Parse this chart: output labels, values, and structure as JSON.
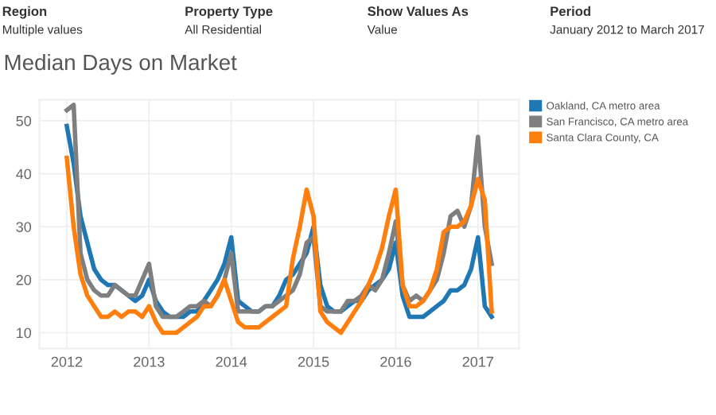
{
  "chart_data": {
    "type": "line",
    "title": "Median Days on Market",
    "annotations": [
      "Region",
      "Multiple values",
      "Property Type",
      "All Residential",
      "Show Values As",
      "Value",
      "Period",
      "January 2012 to March 2017"
    ],
    "x": [
      "2012-01",
      "2012-02",
      "2012-03",
      "2012-04",
      "2012-05",
      "2012-06",
      "2012-07",
      "2012-08",
      "2012-09",
      "2012-10",
      "2012-11",
      "2012-12",
      "2013-01",
      "2013-02",
      "2013-03",
      "2013-04",
      "2013-05",
      "2013-06",
      "2013-07",
      "2013-08",
      "2013-09",
      "2013-10",
      "2013-11",
      "2013-12",
      "2014-01",
      "2014-02",
      "2014-03",
      "2014-04",
      "2014-05",
      "2014-06",
      "2014-07",
      "2014-08",
      "2014-09",
      "2014-10",
      "2014-11",
      "2014-12",
      "2015-01",
      "2015-02",
      "2015-03",
      "2015-04",
      "2015-05",
      "2015-06",
      "2015-07",
      "2015-08",
      "2015-09",
      "2015-10",
      "2015-11",
      "2015-12",
      "2016-01",
      "2016-02",
      "2016-03",
      "2016-04",
      "2016-05",
      "2016-06",
      "2016-07",
      "2016-08",
      "2016-09",
      "2016-10",
      "2016-11",
      "2016-12",
      "2017-01",
      "2017-02",
      "2017-03"
    ],
    "series": [
      {
        "name": "Oakland, CA metro area",
        "color": "#1f77b4",
        "values": [
          49,
          42,
          32,
          27,
          22,
          20,
          19,
          19,
          18,
          17,
          16,
          17,
          20,
          16,
          14,
          13,
          13,
          13,
          14,
          14,
          16,
          18,
          20,
          23,
          28,
          16,
          15,
          14,
          14,
          15,
          15,
          17,
          20,
          21,
          23,
          25,
          30,
          19,
          15,
          14,
          14,
          15,
          16,
          16,
          18,
          19,
          20,
          22,
          27,
          17,
          13,
          13,
          13,
          14,
          15,
          16,
          18,
          18,
          19,
          22,
          28,
          15,
          13
        ]
      },
      {
        "name": "San Francisco, CA metro area",
        "color": "#7f7f7f",
        "values": [
          52,
          53,
          25,
          20,
          18,
          17,
          17,
          19,
          18,
          17,
          17,
          20,
          23,
          15,
          13,
          13,
          13,
          14,
          15,
          15,
          16,
          15,
          17,
          20,
          25,
          14,
          14,
          14,
          14,
          15,
          15,
          16,
          17,
          18,
          21,
          27,
          28,
          15,
          14,
          14,
          14,
          16,
          16,
          17,
          19,
          18,
          20,
          25,
          31,
          19,
          16,
          17,
          16,
          18,
          20,
          25,
          32,
          33,
          30,
          34,
          47,
          30,
          23
        ]
      },
      {
        "name": "Santa Clara County, CA",
        "color": "#ff7f0e",
        "values": [
          43,
          30,
          21,
          17,
          15,
          13,
          13,
          14,
          13,
          14,
          14,
          13,
          15,
          12,
          10,
          10,
          10,
          11,
          12,
          13,
          15,
          15,
          17,
          20,
          16,
          12,
          11,
          11,
          11,
          12,
          13,
          14,
          15,
          24,
          30,
          37,
          32,
          14,
          12,
          11,
          10,
          12,
          14,
          16,
          19,
          22,
          26,
          32,
          37,
          19,
          15,
          15,
          16,
          18,
          22,
          29,
          30,
          30,
          31,
          34,
          39,
          35,
          14
        ]
      }
    ],
    "xlim": [
      "2011-09",
      "2017-07"
    ],
    "xticks": [
      {
        "value": "2012-01",
        "label": "2012"
      },
      {
        "value": "2013-01",
        "label": "2013"
      },
      {
        "value": "2014-01",
        "label": "2014"
      },
      {
        "value": "2015-01",
        "label": "2015"
      },
      {
        "value": "2016-01",
        "label": "2016"
      },
      {
        "value": "2017-01",
        "label": "2017"
      }
    ],
    "ylim": [
      7,
      54
    ],
    "yticks": [
      10,
      20,
      30,
      40,
      50
    ],
    "grid": true,
    "legend": "right",
    "marker": "none",
    "line_style": "solid"
  }
}
